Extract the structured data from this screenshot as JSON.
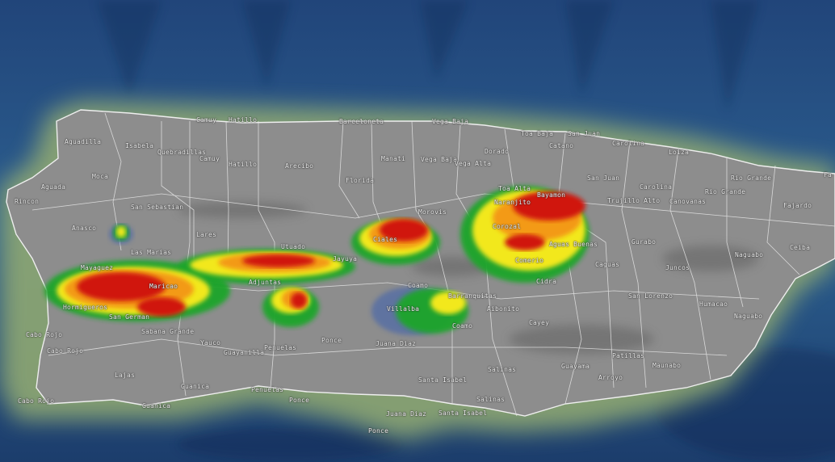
{
  "map": {
    "type": "weather radar overlay",
    "region": "Puerto Rico",
    "colors": {
      "ocean_deep": "#1f3f70",
      "ocean_shallow": "#6f9a7a",
      "land": "#8c8c8c",
      "boundary": "#e8e8e8",
      "radar_light": "#3a5fb0",
      "radar_green": "#1fa52a",
      "radar_yellow": "#f2e81a",
      "radar_orange": "#f39a12",
      "radar_red": "#d0160f",
      "radar_magenta": "#d23ad8"
    }
  },
  "labels": [
    "Camuy",
    "Hatillo",
    "Barceloneta",
    "Vega Baja",
    "Toa Baja",
    "San Juan",
    "Catano",
    "Carolina",
    "Loiza",
    "Aguadilla",
    "Isabela",
    "Quebradillas",
    "Camuy",
    "Hatillo",
    "Arecibo",
    "Manati",
    "Vega Baja",
    "Vega Alta",
    "Dorado",
    "Florida",
    "Moca",
    "Aguada",
    "Rincon",
    "San Sebastian",
    "Anasco",
    "Lares",
    "Utuado",
    "Ciales",
    "Morovis",
    "Jayuya",
    "Las Marias",
    "Toa Alta",
    "Bayamon",
    "San Juan",
    "Trujillo Alto",
    "Carolina",
    "Canovanas",
    "Rio Grande",
    "Rio Grande",
    "Fajardo",
    "Gurabo",
    "Ceiba",
    "Naguabo",
    "Caguas",
    "Juncos",
    "Aguas Buenas",
    "Comerio",
    "Corozal",
    "Naranjito",
    "Mayaguez",
    "Maricao",
    "Adjuntas",
    "Hormigueros",
    "San German",
    "Sabana Grande",
    "Cabo Rojo",
    "Cabo Rojo",
    "Yauco",
    "Guayanilla",
    "Penuelas",
    "Ponce",
    "Juana Diaz",
    "Villalba",
    "Coamo",
    "Coamo",
    "Barranquitas",
    "Cidra",
    "Aibonito",
    "Cayey",
    "San Lorenzo",
    "Humacao",
    "Naguabo",
    "Patillas",
    "Maunabo",
    "Arroyo",
    "Guayama",
    "Salinas",
    "Santa Isabel",
    "Lajas",
    "Guanica",
    "Penuelas",
    "Ponce",
    "Juana Diaz",
    "Santa Isabel",
    "Salinas",
    "Guanica",
    "Cabo Rojo",
    "Ponce",
    "Fa"
  ]
}
